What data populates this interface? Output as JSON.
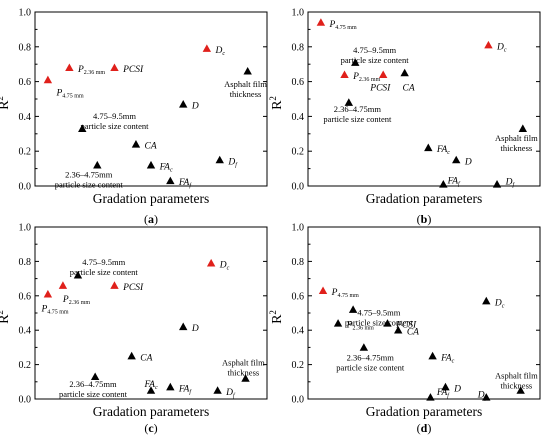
{
  "colors": {
    "black_series": "#000000",
    "red_series": "#e0201b",
    "axis": "#000000"
  },
  "chart_data": [
    {
      "type": "scatter",
      "panel": "(a)",
      "panel_letter": "a",
      "xlabel": "Gradation parameters",
      "ylabel": "R",
      "ylabel_sup": "2",
      "ylim": [
        0,
        1.0
      ],
      "yticks": [
        "0.0",
        "0.2",
        "0.4",
        "0.6",
        "0.8",
        "1.0"
      ],
      "points": [
        {
          "main": "P",
          "sub": "4.75 mm",
          "italic": true,
          "x": 0.6,
          "y": 0.61,
          "color": "red",
          "lx": 1.0,
          "ly": 0.54
        },
        {
          "main": "P",
          "sub": "2.36 mm",
          "italic": true,
          "x": 1.6,
          "y": 0.68,
          "color": "red",
          "lx": 2.0,
          "ly": 0.675
        },
        {
          "main": "PCSI",
          "sub": "",
          "italic": true,
          "x": 3.7,
          "y": 0.68,
          "color": "red",
          "lx": 4.1,
          "ly": 0.675
        },
        {
          "main": "D",
          "sub": "c",
          "italic": true,
          "x": 8.0,
          "y": 0.79,
          "color": "red",
          "lx": 8.4,
          "ly": 0.785
        },
        {
          "main": "",
          "sub": "",
          "italic": false,
          "x": 9.9,
          "y": 0.66,
          "color": "black",
          "lx": 9.9,
          "ly": 0.66
        },
        {
          "main": "D",
          "sub": "",
          "italic": true,
          "x": 6.9,
          "y": 0.47,
          "color": "black",
          "lx": 7.3,
          "ly": 0.465
        },
        {
          "main": "",
          "sub": "",
          "italic": false,
          "x": 2.2,
          "y": 0.33,
          "color": "black",
          "lx": 2.2,
          "ly": 0.33
        },
        {
          "main": "CA",
          "sub": "",
          "italic": true,
          "x": 4.7,
          "y": 0.24,
          "color": "black",
          "lx": 5.1,
          "ly": 0.235
        },
        {
          "main": "",
          "sub": "",
          "italic": false,
          "x": 2.9,
          "y": 0.12,
          "color": "black",
          "lx": 2.9,
          "ly": 0.12
        },
        {
          "main": "FA",
          "sub": "c",
          "italic": true,
          "x": 5.4,
          "y": 0.12,
          "color": "black",
          "lx": 5.8,
          "ly": 0.115
        },
        {
          "main": "D",
          "sub": "f",
          "italic": true,
          "x": 8.6,
          "y": 0.15,
          "color": "black",
          "lx": 9.0,
          "ly": 0.145
        },
        {
          "main": "FA",
          "sub": "f",
          "italic": true,
          "x": 6.3,
          "y": 0.03,
          "color": "black",
          "lx": 6.7,
          "ly": 0.025
        }
      ],
      "annotations": [
        {
          "lines": [
            "Asphalt film",
            "thickness"
          ],
          "x": 9.8,
          "y": 0.57
        },
        {
          "lines": [
            "4.75–9.5mm",
            "particle size content"
          ],
          "x": 3.7,
          "y": 0.385
        },
        {
          "lines": [
            "2.36–4.75mm",
            "particle size content"
          ],
          "x": 2.5,
          "y": 0.05
        }
      ]
    },
    {
      "type": "scatter",
      "panel": "(b)",
      "panel_letter": "b",
      "xlabel": "Gradation parameters",
      "ylabel": "R",
      "ylabel_sup": "2",
      "ylim": [
        0,
        1.0
      ],
      "yticks": [
        "0.0",
        "0.2",
        "0.4",
        "0.6",
        "0.8",
        "1.0"
      ],
      "points": [
        {
          "main": "P",
          "sub": "4.75 mm",
          "italic": true,
          "x": 0.6,
          "y": 0.94,
          "color": "red",
          "lx": 1.0,
          "ly": 0.935
        },
        {
          "main": "P",
          "sub": "2.36 mm",
          "italic": true,
          "x": 1.7,
          "y": 0.64,
          "color": "red",
          "lx": 2.1,
          "ly": 0.635
        },
        {
          "main": "PCSI",
          "sub": "",
          "italic": true,
          "x": 3.5,
          "y": 0.64,
          "color": "red",
          "lx": 2.9,
          "ly": 0.57
        },
        {
          "main": "D",
          "sub": "c",
          "italic": true,
          "x": 8.4,
          "y": 0.81,
          "color": "red",
          "lx": 8.8,
          "ly": 0.805
        },
        {
          "main": "",
          "sub": "",
          "italic": false,
          "x": 2.2,
          "y": 0.71,
          "color": "black",
          "lx": 2.2,
          "ly": 0.71
        },
        {
          "main": "CA",
          "sub": "",
          "italic": true,
          "x": 4.5,
          "y": 0.65,
          "color": "black",
          "lx": 4.4,
          "ly": 0.57
        },
        {
          "main": "",
          "sub": "",
          "italic": false,
          "x": 1.9,
          "y": 0.48,
          "color": "black",
          "lx": 1.9,
          "ly": 0.48
        },
        {
          "main": "FA",
          "sub": "c",
          "italic": true,
          "x": 5.6,
          "y": 0.22,
          "color": "black",
          "lx": 6.0,
          "ly": 0.215
        },
        {
          "main": "D",
          "sub": "",
          "italic": true,
          "x": 6.9,
          "y": 0.15,
          "color": "black",
          "lx": 7.3,
          "ly": 0.145
        },
        {
          "main": "",
          "sub": "",
          "italic": false,
          "x": 10.0,
          "y": 0.33,
          "color": "black",
          "lx": 10.0,
          "ly": 0.33
        },
        {
          "main": "FA",
          "sub": "f",
          "italic": true,
          "x": 6.3,
          "y": 0.01,
          "color": "black",
          "lx": 6.5,
          "ly": 0.035
        },
        {
          "main": "D",
          "sub": "f",
          "italic": true,
          "x": 8.8,
          "y": 0.01,
          "color": "black",
          "lx": 9.2,
          "ly": 0.03
        }
      ],
      "annotations": [
        {
          "lines": [
            "4.75–9.5mm",
            "particle size content"
          ],
          "x": 3.1,
          "y": 0.765
        },
        {
          "lines": [
            "2.36–4.75mm",
            "particle size content"
          ],
          "x": 2.3,
          "y": 0.425
        },
        {
          "lines": [
            "Asphalt film",
            "thickness"
          ],
          "x": 9.7,
          "y": 0.26
        }
      ]
    },
    {
      "type": "scatter",
      "panel": "(c)",
      "panel_letter": "c",
      "xlabel": "Gradation parameters",
      "ylabel": "R",
      "ylabel_sup": "2",
      "ylim": [
        0,
        1.0
      ],
      "yticks": [
        "0.0",
        "0.2",
        "0.4",
        "0.6",
        "0.8",
        "1.0"
      ],
      "points": [
        {
          "main": "P",
          "sub": "4.75 mm",
          "italic": true,
          "x": 0.6,
          "y": 0.61,
          "color": "red",
          "lx": 0.3,
          "ly": 0.53
        },
        {
          "main": "P",
          "sub": "2.36 mm",
          "italic": true,
          "x": 1.3,
          "y": 0.66,
          "color": "red",
          "lx": 1.3,
          "ly": 0.585
        },
        {
          "main": "PCSI",
          "sub": "",
          "italic": true,
          "x": 3.7,
          "y": 0.66,
          "color": "red",
          "lx": 4.1,
          "ly": 0.655
        },
        {
          "main": "D",
          "sub": "c",
          "italic": true,
          "x": 8.2,
          "y": 0.79,
          "color": "red",
          "lx": 8.6,
          "ly": 0.785
        },
        {
          "main": "",
          "sub": "",
          "italic": false,
          "x": 2.0,
          "y": 0.72,
          "color": "black",
          "lx": 2.0,
          "ly": 0.72
        },
        {
          "main": "D",
          "sub": "",
          "italic": true,
          "x": 6.9,
          "y": 0.42,
          "color": "black",
          "lx": 7.3,
          "ly": 0.415
        },
        {
          "main": "CA",
          "sub": "",
          "italic": true,
          "x": 4.5,
          "y": 0.25,
          "color": "black",
          "lx": 4.9,
          "ly": 0.245
        },
        {
          "main": "",
          "sub": "",
          "italic": false,
          "x": 2.8,
          "y": 0.13,
          "color": "black",
          "lx": 2.8,
          "ly": 0.13
        },
        {
          "main": "FA",
          "sub": "c",
          "italic": true,
          "x": 5.4,
          "y": 0.05,
          "color": "black",
          "lx": 5.1,
          "ly": 0.09
        },
        {
          "main": "FA",
          "sub": "f",
          "italic": true,
          "x": 6.3,
          "y": 0.07,
          "color": "black",
          "lx": 6.7,
          "ly": 0.065
        },
        {
          "main": "D",
          "sub": "f",
          "italic": true,
          "x": 8.5,
          "y": 0.05,
          "color": "black",
          "lx": 8.9,
          "ly": 0.045
        },
        {
          "main": "",
          "sub": "",
          "italic": false,
          "x": 9.8,
          "y": 0.12,
          "color": "black",
          "lx": 9.8,
          "ly": 0.12
        }
      ],
      "annotations": [
        {
          "lines": [
            "4.75–9.5mm",
            "particle size content"
          ],
          "x": 3.2,
          "y": 0.78
        },
        {
          "lines": [
            "2.36–4.75mm",
            "particle size content"
          ],
          "x": 2.7,
          "y": 0.07
        },
        {
          "lines": [
            "Asphalt film",
            "thickness"
          ],
          "x": 9.7,
          "y": 0.195
        }
      ]
    },
    {
      "type": "scatter",
      "panel": "(d)",
      "panel_letter": "d",
      "xlabel": "Gradation parameters",
      "ylabel": "R",
      "ylabel_sup": "2",
      "ylim": [
        0,
        1.0
      ],
      "yticks": [
        "0.0",
        "0.2",
        "0.4",
        "0.6",
        "0.8",
        "1.0"
      ],
      "points": [
        {
          "main": "P",
          "sub": "4.75 mm",
          "italic": true,
          "x": 0.7,
          "y": 0.63,
          "color": "red",
          "lx": 1.1,
          "ly": 0.625
        },
        {
          "main": "",
          "sub": "",
          "italic": false,
          "x": 2.1,
          "y": 0.52,
          "color": "black",
          "lx": 2.1,
          "ly": 0.52
        },
        {
          "main": "P",
          "sub": "2.36 mm",
          "italic": true,
          "x": 1.4,
          "y": 0.44,
          "color": "black",
          "lx": 1.8,
          "ly": 0.435
        },
        {
          "main": "PCSI",
          "sub": "",
          "italic": true,
          "x": 3.7,
          "y": 0.44,
          "color": "black",
          "lx": 4.1,
          "ly": 0.435
        },
        {
          "main": "CA",
          "sub": "",
          "italic": true,
          "x": 4.2,
          "y": 0.4,
          "color": "black",
          "lx": 4.6,
          "ly": 0.395
        },
        {
          "main": "D",
          "sub": "c",
          "italic": true,
          "x": 8.3,
          "y": 0.57,
          "color": "black",
          "lx": 8.7,
          "ly": 0.565
        },
        {
          "main": "",
          "sub": "",
          "italic": false,
          "x": 2.6,
          "y": 0.3,
          "color": "black",
          "lx": 2.6,
          "ly": 0.3
        },
        {
          "main": "FA",
          "sub": "c",
          "italic": true,
          "x": 5.8,
          "y": 0.25,
          "color": "black",
          "lx": 6.2,
          "ly": 0.245
        },
        {
          "main": "FA",
          "sub": "f",
          "italic": true,
          "x": 5.7,
          "y": 0.01,
          "color": "black",
          "lx": 6.0,
          "ly": 0.045
        },
        {
          "main": "D",
          "sub": "",
          "italic": true,
          "x": 6.4,
          "y": 0.07,
          "color": "black",
          "lx": 6.8,
          "ly": 0.065
        },
        {
          "main": "D",
          "sub": "f",
          "italic": true,
          "x": 8.3,
          "y": 0.01,
          "color": "black",
          "lx": 7.9,
          "ly": 0.03
        },
        {
          "main": "",
          "sub": "",
          "italic": false,
          "x": 9.9,
          "y": 0.05,
          "color": "black",
          "lx": 9.9,
          "ly": 0.05
        }
      ],
      "annotations": [
        {
          "lines": [
            "4.75–9.5mm",
            "particle size content"
          ],
          "x": 3.3,
          "y": 0.485
        },
        {
          "lines": [
            "2.36–4.75mm",
            "particle size content"
          ],
          "x": 2.9,
          "y": 0.225
        },
        {
          "lines": [
            "Asphalt film",
            "thickness"
          ],
          "x": 9.7,
          "y": 0.12
        }
      ]
    }
  ]
}
